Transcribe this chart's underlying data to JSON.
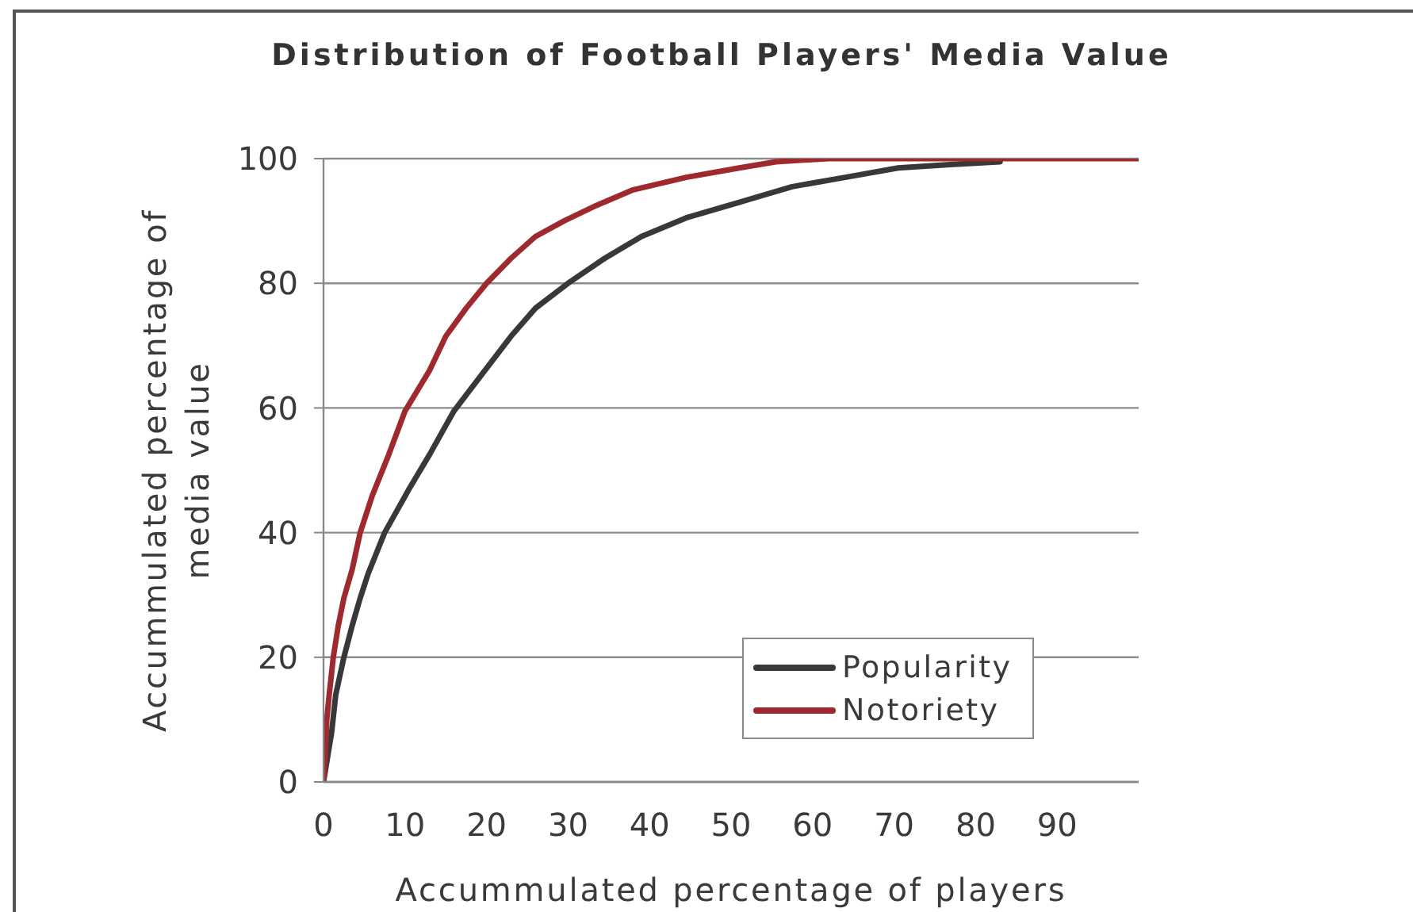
{
  "chart_data": {
    "type": "line",
    "title": "Distribution of Football Players' Media Value",
    "xlabel": "Accummulated percentage of players",
    "ylabel": "Accummulated percentage of media value",
    "xlim": [
      0,
      100
    ],
    "xticks": [
      0,
      10,
      20,
      30,
      40,
      50,
      60,
      70,
      80,
      90
    ],
    "ylim": [
      0,
      100
    ],
    "yticks": [
      0,
      20,
      40,
      60,
      80,
      100
    ],
    "grid": "y",
    "legend": "bottom right",
    "series": [
      {
        "name": "Popularity",
        "color": "#38383c",
        "x": [
          0,
          0.5,
          1,
          1.5,
          2.5,
          3.5,
          4.5,
          5.5,
          7.5,
          10.5,
          13,
          16,
          19.5,
          23,
          26,
          30,
          34.5,
          39,
          44.5,
          51,
          57.5,
          64,
          70.5,
          76.5,
          83
        ],
        "values": [
          0,
          4,
          8,
          14,
          20,
          25,
          29.5,
          33.5,
          40,
          47,
          52.5,
          59.5,
          65.5,
          71.5,
          76,
          80,
          84,
          87.5,
          90.5,
          93,
          95.5,
          97,
          98.5,
          99,
          99.5
        ]
      },
      {
        "name": "Notoriety",
        "color": "#9e2a2f",
        "x": [
          0,
          0.2,
          0.4,
          0.7,
          1.2,
          1.8,
          2.5,
          3.5,
          4.5,
          6,
          8,
          10,
          13,
          15,
          17.5,
          20,
          23,
          26,
          29.5,
          33.5,
          38,
          44.5,
          51,
          55.5,
          62,
          100
        ],
        "values": [
          0,
          4,
          10,
          14,
          20,
          25,
          29.5,
          34,
          40,
          46,
          52.5,
          59.5,
          66,
          71.5,
          76,
          80,
          84,
          87.5,
          90,
          92.5,
          95,
          97,
          98.5,
          99.5,
          100,
          100
        ]
      }
    ]
  }
}
